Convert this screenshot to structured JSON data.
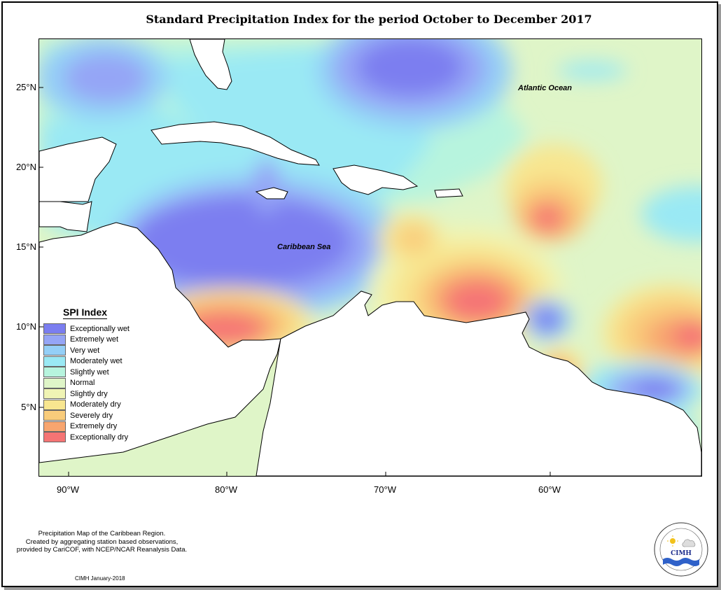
{
  "title": "Standard Precipitation Index for the period October to December 2017",
  "map": {
    "ocean_labels": {
      "atlantic": "Atlantic Ocean",
      "caribbean": "Caribbean Sea"
    },
    "latitude_ticks": [
      "25°N",
      "20°N",
      "15°N",
      "10°N",
      "5°N"
    ],
    "longitude_ticks": [
      "90°W",
      "80°W",
      "70°W",
      "60°W"
    ]
  },
  "legend": {
    "title": "SPI Index",
    "items": [
      {
        "label": "Exceptionally wet",
        "color": "#7b7ef0"
      },
      {
        "label": "Extremely wet",
        "color": "#95a5f6"
      },
      {
        "label": "Very wet",
        "color": "#94cff7"
      },
      {
        "label": "Moderately wet",
        "color": "#9ae9f4"
      },
      {
        "label": "Slightly wet",
        "color": "#b7f4de"
      },
      {
        "label": "Normal",
        "color": "#dff5c8"
      },
      {
        "label": "Slightly dry",
        "color": "#f0f4b4"
      },
      {
        "label": "Moderately dry",
        "color": "#f8e690"
      },
      {
        "label": "Severely dry",
        "color": "#f9cc7b"
      },
      {
        "label": "Extremely dry",
        "color": "#f8a56f"
      },
      {
        "label": "Exceptionally dry",
        "color": "#f57474"
      }
    ]
  },
  "footer": {
    "lines": [
      "Precipitation Map of the Caribbean Region.",
      "Created by aggregating station based observations,",
      "provided by CariCOF, with NCEP/NCAR Reanalysis Data."
    ],
    "credit": "CIMH January-2018",
    "logo_text": "CIMH"
  }
}
